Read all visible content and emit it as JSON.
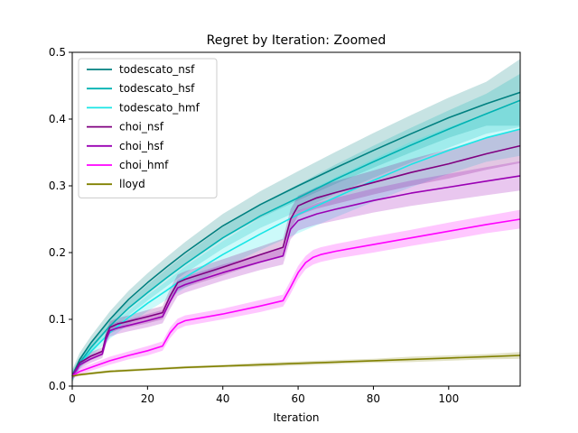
{
  "chart_data": {
    "type": "line",
    "title": "Regret by Iteration: Zoomed",
    "xlabel": "Iteration",
    "ylabel": "",
    "xlim": [
      0,
      119
    ],
    "ylim": [
      0,
      0.5
    ],
    "x_ticks": [
      0,
      20,
      40,
      60,
      80,
      100
    ],
    "y_ticks": [
      0.0,
      0.1,
      0.2,
      0.3,
      0.4,
      0.5
    ],
    "x_tick_labels": [
      "0",
      "20",
      "40",
      "60",
      "80",
      "100"
    ],
    "y_tick_labels": [
      "0.0",
      "0.1",
      "0.2",
      "0.3",
      "0.4",
      "0.5"
    ],
    "legend_position": "top-left",
    "grid": false,
    "series": [
      {
        "name": "todescato_nsf",
        "color": "#008080",
        "x": [
          0,
          2,
          5,
          10,
          15,
          20,
          25,
          30,
          40,
          50,
          60,
          70,
          80,
          90,
          100,
          110,
          119
        ],
        "y": [
          0.015,
          0.04,
          0.065,
          0.1,
          0.13,
          0.155,
          0.178,
          0.2,
          0.24,
          0.272,
          0.3,
          0.327,
          0.353,
          0.378,
          0.402,
          0.423,
          0.44
        ],
        "band": [
          0.01,
          0.01,
          0.01,
          0.012,
          0.013,
          0.014,
          0.015,
          0.016,
          0.018,
          0.02,
          0.022,
          0.024,
          0.026,
          0.028,
          0.03,
          0.033,
          0.05
        ]
      },
      {
        "name": "todescato_hsf",
        "color": "#00b2b2",
        "x": [
          0,
          2,
          5,
          10,
          15,
          20,
          25,
          30,
          40,
          50,
          60,
          70,
          80,
          90,
          100,
          110,
          119
        ],
        "y": [
          0.015,
          0.035,
          0.058,
          0.09,
          0.117,
          0.14,
          0.162,
          0.183,
          0.222,
          0.255,
          0.282,
          0.31,
          0.336,
          0.361,
          0.385,
          0.408,
          0.428
        ],
        "band": [
          0.008,
          0.008,
          0.009,
          0.01,
          0.011,
          0.012,
          0.013,
          0.014,
          0.016,
          0.018,
          0.02,
          0.022,
          0.024,
          0.026,
          0.028,
          0.03,
          0.04
        ]
      },
      {
        "name": "todescato_hmf",
        "color": "#19e6e6",
        "x": [
          0,
          2,
          5,
          10,
          15,
          20,
          25,
          30,
          40,
          50,
          60,
          70,
          80,
          90,
          100,
          110,
          119
        ],
        "y": [
          0.015,
          0.033,
          0.052,
          0.08,
          0.103,
          0.124,
          0.143,
          0.163,
          0.197,
          0.228,
          0.257,
          0.283,
          0.308,
          0.332,
          0.353,
          0.372,
          0.385
        ],
        "band": [
          0.006,
          0.007,
          0.008,
          0.009,
          0.01,
          0.012,
          0.014,
          0.016,
          0.02,
          0.024,
          0.028,
          0.03,
          0.032,
          0.034,
          0.035,
          0.036,
          0.04
        ]
      },
      {
        "name": "choi_nsf",
        "color": "#800080",
        "x": [
          0,
          2,
          5,
          8,
          9,
          10,
          12,
          15,
          20,
          24,
          26,
          28,
          30,
          40,
          50,
          56,
          58,
          60,
          62,
          65,
          70,
          80,
          90,
          100,
          110,
          119
        ],
        "y": [
          0.015,
          0.035,
          0.045,
          0.052,
          0.075,
          0.088,
          0.093,
          0.097,
          0.104,
          0.11,
          0.135,
          0.155,
          0.16,
          0.178,
          0.197,
          0.208,
          0.25,
          0.27,
          0.275,
          0.282,
          0.29,
          0.305,
          0.32,
          0.333,
          0.348,
          0.36
        ],
        "band": [
          0.005,
          0.006,
          0.006,
          0.006,
          0.008,
          0.009,
          0.009,
          0.009,
          0.01,
          0.01,
          0.011,
          0.012,
          0.012,
          0.012,
          0.012,
          0.013,
          0.015,
          0.015,
          0.015,
          0.016,
          0.017,
          0.018,
          0.02,
          0.022,
          0.024,
          0.026
        ]
      },
      {
        "name": "choi_hsf",
        "color": "#9a00b4",
        "x": [
          0,
          2,
          5,
          8,
          9,
          10,
          12,
          15,
          20,
          24,
          26,
          28,
          30,
          40,
          50,
          56,
          58,
          60,
          62,
          65,
          70,
          80,
          90,
          100,
          110,
          119
        ],
        "y": [
          0.015,
          0.032,
          0.041,
          0.048,
          0.07,
          0.083,
          0.087,
          0.091,
          0.098,
          0.104,
          0.127,
          0.147,
          0.152,
          0.17,
          0.186,
          0.195,
          0.235,
          0.248,
          0.252,
          0.258,
          0.265,
          0.278,
          0.289,
          0.298,
          0.307,
          0.315
        ],
        "band": [
          0.005,
          0.006,
          0.006,
          0.006,
          0.008,
          0.009,
          0.009,
          0.009,
          0.01,
          0.01,
          0.011,
          0.012,
          0.012,
          0.012,
          0.012,
          0.013,
          0.015,
          0.015,
          0.015,
          0.016,
          0.017,
          0.018,
          0.019,
          0.02,
          0.021,
          0.022
        ]
      },
      {
        "name": "choi_hmf",
        "color": "#ff00ff",
        "x": [
          0,
          2,
          5,
          10,
          15,
          20,
          24,
          26,
          28,
          30,
          40,
          50,
          56,
          58,
          60,
          62,
          64,
          66,
          70,
          80,
          90,
          100,
          110,
          119
        ],
        "y": [
          0.015,
          0.022,
          0.028,
          0.038,
          0.046,
          0.053,
          0.06,
          0.08,
          0.093,
          0.098,
          0.108,
          0.12,
          0.128,
          0.148,
          0.17,
          0.185,
          0.193,
          0.197,
          0.202,
          0.212,
          0.222,
          0.232,
          0.242,
          0.25
        ],
        "band": [
          0.004,
          0.005,
          0.005,
          0.006,
          0.006,
          0.007,
          0.007,
          0.008,
          0.008,
          0.008,
          0.008,
          0.009,
          0.009,
          0.01,
          0.01,
          0.01,
          0.011,
          0.011,
          0.011,
          0.012,
          0.012,
          0.013,
          0.013,
          0.014
        ]
      },
      {
        "name": "lloyd",
        "color": "#808000",
        "x": [
          0,
          2,
          5,
          10,
          20,
          30,
          40,
          50,
          60,
          70,
          80,
          90,
          100,
          110,
          119
        ],
        "y": [
          0.015,
          0.017,
          0.019,
          0.022,
          0.025,
          0.028,
          0.03,
          0.032,
          0.034,
          0.036,
          0.038,
          0.04,
          0.042,
          0.044,
          0.046
        ],
        "band": [
          0.002,
          0.002,
          0.002,
          0.002,
          0.002,
          0.002,
          0.002,
          0.003,
          0.003,
          0.003,
          0.003,
          0.004,
          0.004,
          0.004,
          0.005
        ]
      }
    ]
  }
}
